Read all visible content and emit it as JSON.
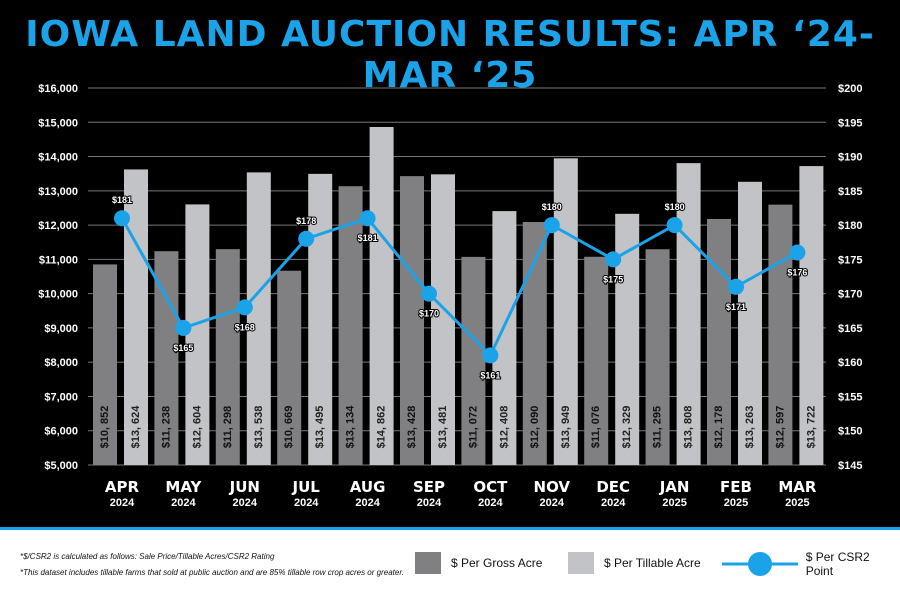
{
  "chart_data": {
    "type": "bar",
    "title": "IOWA LAND AUCTION RESULTS: APR ‘24-MAR ‘25",
    "categories": [
      [
        "APR",
        "2024"
      ],
      [
        "MAY",
        "2024"
      ],
      [
        "JUN",
        "2024"
      ],
      [
        "JUL",
        "2024"
      ],
      [
        "AUG",
        "2024"
      ],
      [
        "SEP",
        "2024"
      ],
      [
        "OCT",
        "2024"
      ],
      [
        "NOV",
        "2024"
      ],
      [
        "DEC",
        "2024"
      ],
      [
        "JAN",
        "2025"
      ],
      [
        "FEB",
        "2025"
      ],
      [
        "MAR",
        "2025"
      ]
    ],
    "ylim": [
      5000,
      16000
    ],
    "y2lim": [
      145,
      200
    ],
    "yticks": [
      "$5,000",
      "$6,000",
      "$7,000",
      "$8,000",
      "$9,000",
      "$10,000",
      "$11,000",
      "$12,000",
      "$13,000",
      "$14,000",
      "$15,000",
      "$16,000"
    ],
    "y2ticks": [
      "$145",
      "$150",
      "$155",
      "$160",
      "$165",
      "$170",
      "$175",
      "$180",
      "$185",
      "$190",
      "$195",
      "$200"
    ],
    "series": [
      {
        "name": "$ Per Gross Acre",
        "type": "bar",
        "color": "#808083",
        "values": [
          10852,
          11238,
          11298,
          10669,
          13134,
          13428,
          11072,
          12090,
          11076,
          11295,
          12178,
          12597
        ],
        "labels": [
          "$10, 852",
          "$11, 238",
          "$11, 298",
          "$10, 669",
          "$13, 134",
          "$13, 428",
          "$11, 072",
          "$12, 090",
          "$11, 076",
          "$11, 295",
          "$12, 178",
          "$12, 597"
        ]
      },
      {
        "name": "$ Per Tillable Acre",
        "type": "bar",
        "color": "#c2c3c6",
        "values": [
          13624,
          12604,
          13538,
          13495,
          14862,
          13481,
          12408,
          13949,
          12329,
          13808,
          13263,
          13722
        ],
        "labels": [
          "$13, 624",
          "$12, 604",
          "$13, 538",
          "$13, 495",
          "$14, 862",
          "$13, 481",
          "$12, 408",
          "$13, 949",
          "$12, 329",
          "$13, 808",
          "$13, 263",
          "$13, 722"
        ]
      },
      {
        "name": "$ Per CSR2 Point",
        "type": "line",
        "axis": "right",
        "color": "#1aa3e8",
        "values": [
          181,
          165,
          168,
          178,
          181,
          170,
          161,
          180,
          175,
          180,
          171,
          176
        ],
        "labels": [
          "$181",
          "$165",
          "$168",
          "$178",
          "$181",
          "$170",
          "$161",
          "$180",
          "$175",
          "$180",
          "$171",
          "$176"
        ]
      }
    ]
  },
  "footer": {
    "note1": "*$/CSR2 is calculated as follows: Sale Price/Tillable Acres/CSR2 Rating",
    "note2": "*This dataset includes tillable farms that sold at public auction and are 85% tillable row crop acres or greater."
  }
}
